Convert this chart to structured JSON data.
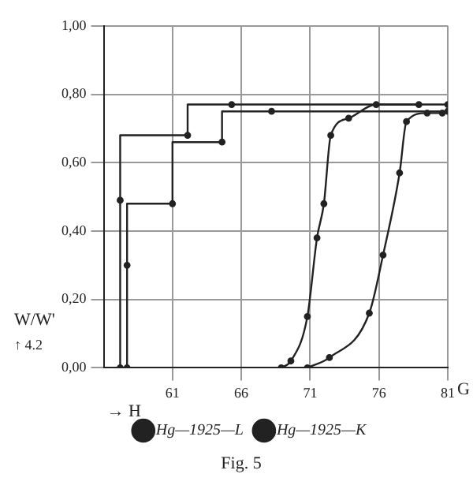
{
  "chart_data": {
    "type": "line",
    "xlabel": "G",
    "ylabel": "W/W'",
    "xlim": [
      56,
      81
    ],
    "xticks": [
      61,
      66,
      71,
      76,
      81
    ],
    "ylim": [
      0,
      1
    ],
    "yticks": [
      {
        "value": 0,
        "label": "0,00"
      },
      {
        "value": 0.2,
        "label": "0,20"
      },
      {
        "value": 0.4,
        "label": "0,40"
      },
      {
        "value": 0.6,
        "label": "0,60"
      },
      {
        "value": 0.8,
        "label": "0,80"
      },
      {
        "value": 1,
        "label": "1,00"
      }
    ],
    "grid": true,
    "legend": "bottom",
    "marker": "circle",
    "annotations": [
      "Fig. 5",
      "→ H",
      "↑ 4.2"
    ],
    "series": [
      {
        "type": "step",
        "color": "#222222",
        "x": [
          57.2,
          57.2,
          62.1,
          65.3,
          81
        ],
        "values": [
          0,
          0.49,
          0.68,
          0.77,
          0.77
        ]
      },
      {
        "type": "step",
        "color": "#222222",
        "x": [
          57.7,
          57.7,
          61.0,
          64.6,
          68.2,
          81
        ],
        "values": [
          0,
          0.3,
          0.48,
          0.66,
          0.75,
          0.75
        ]
      },
      {
        "type": "line",
        "name": "Hg—1925—L",
        "color": "#222222",
        "x": [
          68.9,
          69.6,
          70.8,
          71.5,
          72.0,
          72.5,
          73.8,
          75.8,
          78.9
        ],
        "values": [
          0,
          0.02,
          0.15,
          0.38,
          0.48,
          0.68,
          0.73,
          0.77,
          0.77
        ]
      },
      {
        "type": "line",
        "name": "Hg—1925—K",
        "color": "#222222",
        "x": [
          70.8,
          72.4,
          75.3,
          76.3,
          77.5,
          78.0,
          79.5,
          80.6
        ],
        "values": [
          0,
          0.03,
          0.16,
          0.33,
          0.57,
          0.72,
          0.745,
          0.745
        ]
      }
    ]
  }
}
